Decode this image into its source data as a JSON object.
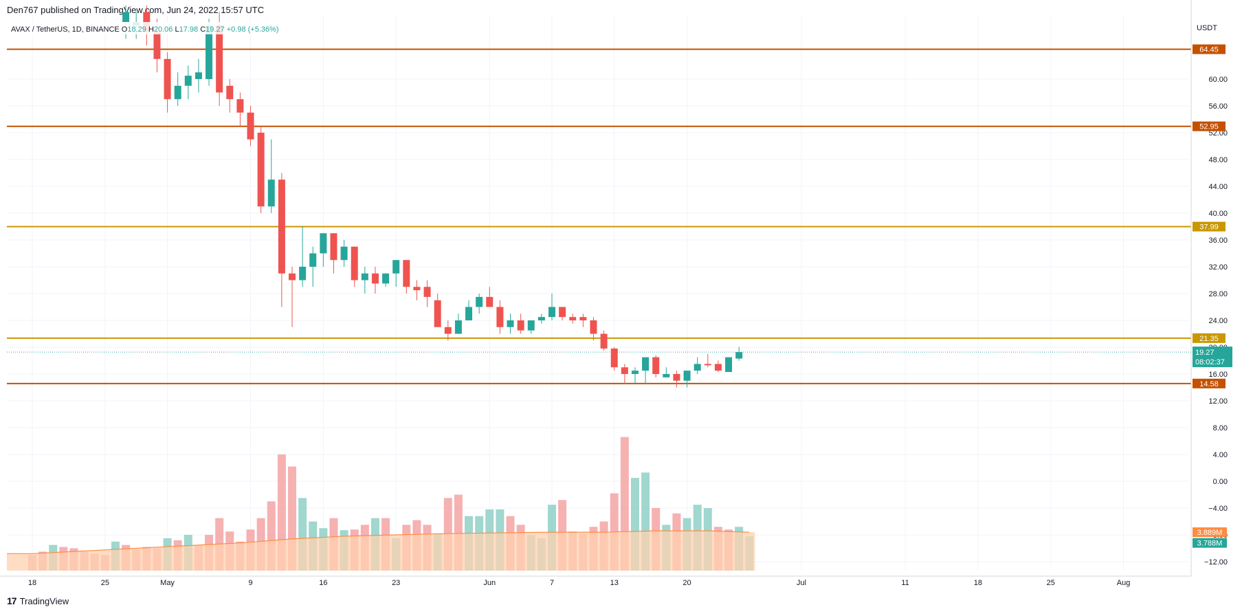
{
  "header": {
    "published_text": "Den767 published on TradingView.com, Jun 24, 2022 15:57 UTC"
  },
  "footer": {
    "brand": "TradingView",
    "logo_glyph": "17"
  },
  "colors": {
    "up": "#26a69a",
    "down": "#ef5350",
    "up_volume": "#8fd0c7",
    "down_volume": "#f5a3a3",
    "level_dark": "#c45100",
    "level_gold": "#c99700",
    "ma_line": "#ff8c42",
    "ma_fill": "#ffd2b0",
    "grid": "#f0f3fa",
    "axis_text": "#131722"
  },
  "chart_data": {
    "type": "candlestick",
    "symbol_line": {
      "pair": "AVAX / TetherUS, 1D, BINANCE",
      "open_label": "O",
      "open": "18.29",
      "high_label": "H",
      "high": "20.06",
      "low_label": "L",
      "low": "17.98",
      "close_label": "C",
      "close": "19.27",
      "change": "+0.98 (+5.36%)"
    },
    "currency": "USDT",
    "ylim": [
      -14,
      92
    ],
    "y_ticks": [
      "60.00",
      "56.00",
      "52.00",
      "48.00",
      "44.00",
      "40.00",
      "36.00",
      "32.00",
      "28.00",
      "24.00",
      "20.00",
      "16.00",
      "12.00",
      "8.00",
      "4.00",
      "0.00",
      "−4.00",
      "−8.00",
      "−12.00"
    ],
    "y_tick_values": [
      60,
      56,
      52,
      48,
      44,
      40,
      36,
      32,
      28,
      24,
      20,
      16,
      12,
      8,
      4,
      0,
      -4,
      -8,
      -12
    ],
    "x_ticks": [
      {
        "label": "18",
        "day": 0
      },
      {
        "label": "25",
        "day": 7
      },
      {
        "label": "May",
        "day": 13
      },
      {
        "label": "9",
        "day": 21
      },
      {
        "label": "16",
        "day": 28
      },
      {
        "label": "23",
        "day": 35
      },
      {
        "label": "Jun",
        "day": 44
      },
      {
        "label": "7",
        "day": 50
      },
      {
        "label": "13",
        "day": 56
      },
      {
        "label": "20",
        "day": 63
      },
      {
        "label": "Jul",
        "day": 74
      },
      {
        "label": "11",
        "day": 84
      },
      {
        "label": "18",
        "day": 91
      },
      {
        "label": "25",
        "day": 98
      },
      {
        "label": "Aug",
        "day": 105
      }
    ],
    "levels": [
      {
        "value": 64.45,
        "label": "64.45",
        "style": "dark"
      },
      {
        "value": 52.95,
        "label": "52.95",
        "style": "dark"
      },
      {
        "value": 37.99,
        "label": "37.99",
        "style": "gold"
      },
      {
        "value": 21.35,
        "label": "21.35",
        "style": "gold"
      },
      {
        "value": 14.58,
        "label": "14.58",
        "style": "dark"
      }
    ],
    "last_price": {
      "value": 19.27,
      "label": "19.27",
      "countdown": "08:02:37"
    },
    "volume_badges": [
      {
        "label": "3.889M",
        "style": "orange",
        "value": -7.6
      },
      {
        "label": "3.788M",
        "style": "teal",
        "value": -9.2
      }
    ],
    "candles": [
      {
        "d": 9,
        "o": 68.5,
        "h": 71,
        "l": 66,
        "c": 70
      },
      {
        "d": 10,
        "o": 68,
        "h": 70,
        "l": 66,
        "c": 68.5
      },
      {
        "d": 11,
        "o": 70,
        "h": 71,
        "l": 65,
        "c": 67
      },
      {
        "d": 12,
        "o": 67,
        "h": 69,
        "l": 61,
        "c": 63
      },
      {
        "d": 13,
        "o": 63,
        "h": 64,
        "l": 55,
        "c": 57
      },
      {
        "d": 14,
        "o": 57,
        "h": 61,
        "l": 56,
        "c": 59
      },
      {
        "d": 15,
        "o": 59,
        "h": 62,
        "l": 57,
        "c": 60.5
      },
      {
        "d": 16,
        "o": 60,
        "h": 63,
        "l": 58,
        "c": 61
      },
      {
        "d": 17,
        "o": 60,
        "h": 69,
        "l": 59,
        "c": 68
      },
      {
        "d": 18,
        "o": 68,
        "h": 70,
        "l": 56,
        "c": 58
      },
      {
        "d": 19,
        "o": 59,
        "h": 60,
        "l": 55,
        "c": 57
      },
      {
        "d": 20,
        "o": 57,
        "h": 58,
        "l": 53,
        "c": 55
      },
      {
        "d": 21,
        "o": 55,
        "h": 56,
        "l": 50,
        "c": 51
      },
      {
        "d": 22,
        "o": 52,
        "h": 53,
        "l": 40,
        "c": 41
      },
      {
        "d": 23,
        "o": 41,
        "h": 51,
        "l": 40,
        "c": 45
      },
      {
        "d": 24,
        "o": 45,
        "h": 46,
        "l": 26,
        "c": 31
      },
      {
        "d": 25,
        "o": 31,
        "h": 32,
        "l": 23,
        "c": 30
      },
      {
        "d": 26,
        "o": 30,
        "h": 38,
        "l": 29,
        "c": 32
      },
      {
        "d": 27,
        "o": 32,
        "h": 35,
        "l": 29,
        "c": 34
      },
      {
        "d": 28,
        "o": 34,
        "h": 37,
        "l": 32,
        "c": 37
      },
      {
        "d": 29,
        "o": 37,
        "h": 37,
        "l": 31,
        "c": 33
      },
      {
        "d": 30,
        "o": 33,
        "h": 36,
        "l": 32,
        "c": 35
      },
      {
        "d": 31,
        "o": 35,
        "h": 35,
        "l": 29,
        "c": 30
      },
      {
        "d": 32,
        "o": 30,
        "h": 32,
        "l": 28,
        "c": 31
      },
      {
        "d": 33,
        "o": 31,
        "h": 32,
        "l": 28,
        "c": 29.5
      },
      {
        "d": 34,
        "o": 29.5,
        "h": 31,
        "l": 29,
        "c": 31
      },
      {
        "d": 35,
        "o": 31,
        "h": 33,
        "l": 29,
        "c": 33
      },
      {
        "d": 36,
        "o": 33,
        "h": 33,
        "l": 28,
        "c": 29
      },
      {
        "d": 37,
        "o": 29,
        "h": 30,
        "l": 27,
        "c": 28.5
      },
      {
        "d": 38,
        "o": 29,
        "h": 30,
        "l": 26,
        "c": 27.5
      },
      {
        "d": 39,
        "o": 27,
        "h": 28,
        "l": 23,
        "c": 23
      },
      {
        "d": 40,
        "o": 23,
        "h": 24,
        "l": 21,
        "c": 22
      },
      {
        "d": 41,
        "o": 22,
        "h": 25,
        "l": 22,
        "c": 24
      },
      {
        "d": 42,
        "o": 24,
        "h": 27,
        "l": 24,
        "c": 26
      },
      {
        "d": 43,
        "o": 26,
        "h": 28,
        "l": 25,
        "c": 27.5
      },
      {
        "d": 44,
        "o": 27.5,
        "h": 29,
        "l": 26,
        "c": 26
      },
      {
        "d": 45,
        "o": 26,
        "h": 27,
        "l": 22,
        "c": 23
      },
      {
        "d": 46,
        "o": 23,
        "h": 25,
        "l": 22,
        "c": 24
      },
      {
        "d": 47,
        "o": 24,
        "h": 25,
        "l": 22,
        "c": 22.5
      },
      {
        "d": 48,
        "o": 22.5,
        "h": 24,
        "l": 22,
        "c": 24
      },
      {
        "d": 49,
        "o": 24,
        "h": 25,
        "l": 23.5,
        "c": 24.5
      },
      {
        "d": 50,
        "o": 24.5,
        "h": 28,
        "l": 24,
        "c": 26
      },
      {
        "d": 51,
        "o": 26,
        "h": 26,
        "l": 24,
        "c": 24.5
      },
      {
        "d": 52,
        "o": 24.5,
        "h": 25,
        "l": 23.5,
        "c": 24
      },
      {
        "d": 53,
        "o": 24.5,
        "h": 25,
        "l": 23,
        "c": 24
      },
      {
        "d": 54,
        "o": 24,
        "h": 24.5,
        "l": 21,
        "c": 22
      },
      {
        "d": 55,
        "o": 22,
        "h": 22.5,
        "l": 19.5,
        "c": 19.8
      },
      {
        "d": 56,
        "o": 19.8,
        "h": 20,
        "l": 16.5,
        "c": 17
      },
      {
        "d": 57,
        "o": 17,
        "h": 17.5,
        "l": 14.5,
        "c": 16
      },
      {
        "d": 58,
        "o": 16,
        "h": 17,
        "l": 14.5,
        "c": 16.5
      },
      {
        "d": 59,
        "o": 16.5,
        "h": 18.5,
        "l": 14.5,
        "c": 18.5
      },
      {
        "d": 60,
        "o": 18.5,
        "h": 18.8,
        "l": 15.5,
        "c": 16
      },
      {
        "d": 61,
        "o": 15.5,
        "h": 17,
        "l": 15.5,
        "c": 16
      },
      {
        "d": 62,
        "o": 16,
        "h": 16.5,
        "l": 14,
        "c": 15
      },
      {
        "d": 63,
        "o": 15,
        "h": 16.5,
        "l": 14,
        "c": 16.5
      },
      {
        "d": 64,
        "o": 16.5,
        "h": 18.5,
        "l": 16,
        "c": 17.5
      },
      {
        "d": 65,
        "o": 17.5,
        "h": 19,
        "l": 17,
        "c": 17.3
      },
      {
        "d": 66,
        "o": 17.5,
        "h": 18,
        "l": 16.3,
        "c": 16.5
      },
      {
        "d": 67,
        "o": 16.3,
        "h": 18.5,
        "l": 16.3,
        "c": 18.5
      },
      {
        "d": 68,
        "o": 18.3,
        "h": 20.06,
        "l": 17.98,
        "c": 19.27
      }
    ],
    "volume": [
      {
        "d": 0,
        "v": -11,
        "up": false
      },
      {
        "d": 1,
        "v": -10.5,
        "up": false
      },
      {
        "d": 2,
        "v": -9.5,
        "up": true
      },
      {
        "d": 3,
        "v": -9.8,
        "up": false
      },
      {
        "d": 4,
        "v": -10,
        "up": false
      },
      {
        "d": 5,
        "v": -10.5,
        "up": false
      },
      {
        "d": 6,
        "v": -10.8,
        "up": false
      },
      {
        "d": 7,
        "v": -11,
        "up": false
      },
      {
        "d": 8,
        "v": -9,
        "up": true
      },
      {
        "d": 9,
        "v": -9.5,
        "up": false
      },
      {
        "d": 10,
        "v": -10.2,
        "up": false
      },
      {
        "d": 11,
        "v": -9.8,
        "up": false
      },
      {
        "d": 12,
        "v": -10,
        "up": false
      },
      {
        "d": 13,
        "v": -8.5,
        "up": true
      },
      {
        "d": 14,
        "v": -8.8,
        "up": false
      },
      {
        "d": 15,
        "v": -8,
        "up": true
      },
      {
        "d": 16,
        "v": -9.5,
        "up": false
      },
      {
        "d": 17,
        "v": -8,
        "up": false
      },
      {
        "d": 18,
        "v": -5.5,
        "up": false
      },
      {
        "d": 19,
        "v": -7.5,
        "up": false
      },
      {
        "d": 20,
        "v": -9,
        "up": false
      },
      {
        "d": 21,
        "v": -7.2,
        "up": false
      },
      {
        "d": 22,
        "v": -5.5,
        "up": false
      },
      {
        "d": 23,
        "v": -3,
        "up": false
      },
      {
        "d": 24,
        "v": 4,
        "up": false
      },
      {
        "d": 25,
        "v": 2.2,
        "up": false
      },
      {
        "d": 26,
        "v": -2.5,
        "up": true
      },
      {
        "d": 27,
        "v": -6,
        "up": true
      },
      {
        "d": 28,
        "v": -7,
        "up": true
      },
      {
        "d": 29,
        "v": -5.5,
        "up": false
      },
      {
        "d": 30,
        "v": -7.3,
        "up": true
      },
      {
        "d": 31,
        "v": -7.2,
        "up": false
      },
      {
        "d": 32,
        "v": -6.5,
        "up": false
      },
      {
        "d": 33,
        "v": -5.5,
        "up": true
      },
      {
        "d": 34,
        "v": -5.5,
        "up": false
      },
      {
        "d": 35,
        "v": -8.5,
        "up": true
      },
      {
        "d": 36,
        "v": -6.5,
        "up": false
      },
      {
        "d": 37,
        "v": -5.8,
        "up": false
      },
      {
        "d": 38,
        "v": -6.5,
        "up": false
      },
      {
        "d": 39,
        "v": -7.8,
        "up": true
      },
      {
        "d": 40,
        "v": -2.5,
        "up": false
      },
      {
        "d": 41,
        "v": -2,
        "up": false
      },
      {
        "d": 42,
        "v": -5.2,
        "up": true
      },
      {
        "d": 43,
        "v": -5.2,
        "up": true
      },
      {
        "d": 44,
        "v": -4.2,
        "up": true
      },
      {
        "d": 45,
        "v": -4.2,
        "up": true
      },
      {
        "d": 46,
        "v": -5.2,
        "up": false
      },
      {
        "d": 47,
        "v": -6.5,
        "up": false
      },
      {
        "d": 48,
        "v": -8,
        "up": true
      },
      {
        "d": 49,
        "v": -8.5,
        "up": true
      },
      {
        "d": 50,
        "v": -3.5,
        "up": true
      },
      {
        "d": 51,
        "v": -2.8,
        "up": false
      },
      {
        "d": 52,
        "v": -7.5,
        "up": false
      },
      {
        "d": 53,
        "v": -7.8,
        "up": false
      },
      {
        "d": 54,
        "v": -6.8,
        "up": false
      },
      {
        "d": 55,
        "v": -6,
        "up": false
      },
      {
        "d": 56,
        "v": -1.8,
        "up": false
      },
      {
        "d": 57,
        "v": 6.6,
        "up": false
      },
      {
        "d": 58,
        "v": 0.5,
        "up": true
      },
      {
        "d": 59,
        "v": 1.3,
        "up": true
      },
      {
        "d": 60,
        "v": -4,
        "up": false
      },
      {
        "d": 61,
        "v": -6.5,
        "up": true
      },
      {
        "d": 62,
        "v": -4.8,
        "up": false
      },
      {
        "d": 63,
        "v": -5.5,
        "up": true
      },
      {
        "d": 64,
        "v": -3.5,
        "up": true
      },
      {
        "d": 65,
        "v": -4,
        "up": true
      },
      {
        "d": 66,
        "v": -6.8,
        "up": false
      },
      {
        "d": 67,
        "v": -7.2,
        "up": false
      },
      {
        "d": 68,
        "v": -6.8,
        "up": true
      },
      {
        "d": 69,
        "v": -8.2,
        "up": true
      }
    ],
    "volume_ma": [
      {
        "d": 0,
        "v": -10.8
      },
      {
        "d": 5,
        "v": -10.4
      },
      {
        "d": 10,
        "v": -10
      },
      {
        "d": 15,
        "v": -9.6
      },
      {
        "d": 20,
        "v": -9.2
      },
      {
        "d": 25,
        "v": -8.6
      },
      {
        "d": 30,
        "v": -8.2
      },
      {
        "d": 35,
        "v": -8.0
      },
      {
        "d": 40,
        "v": -7.8
      },
      {
        "d": 45,
        "v": -7.7
      },
      {
        "d": 50,
        "v": -7.6
      },
      {
        "d": 55,
        "v": -7.6
      },
      {
        "d": 60,
        "v": -7.4
      },
      {
        "d": 65,
        "v": -7.4
      },
      {
        "d": 69,
        "v": -7.6
      }
    ]
  }
}
